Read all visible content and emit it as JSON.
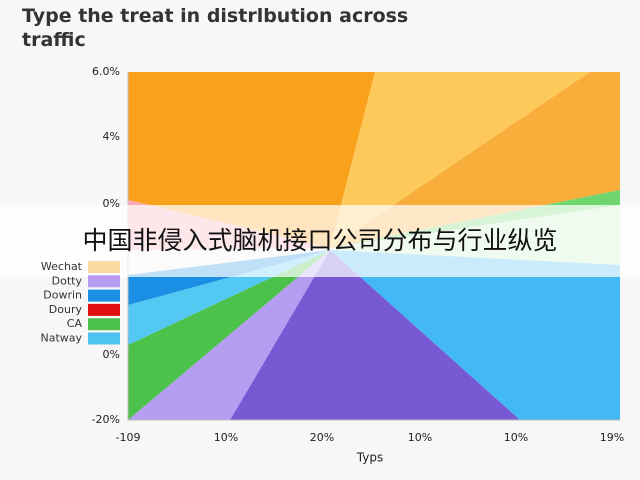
{
  "title": "Type the treat in distrlbution across traffic",
  "y_axis": {
    "ticks": [
      "6.0%",
      "4%",
      "0%",
      "0%",
      "-20%"
    ]
  },
  "x_axis": {
    "ticks": [
      "-109",
      "10%",
      "20%",
      "10%",
      "10%",
      "19%"
    ],
    "label": "Typs"
  },
  "legend": [
    {
      "label": "Wechat",
      "color": "#fcd9a0"
    },
    {
      "label": "Dotty",
      "color": "#b79cf0"
    },
    {
      "label": "Dowrin",
      "color": "#1a8fe3"
    },
    {
      "label": "Doury",
      "color": "#e01010"
    },
    {
      "label": "CA",
      "color": "#4cc24c"
    },
    {
      "label": "Natway",
      "color": "#4ec3f2"
    }
  ],
  "banner": "中国非侵入式脑机接口公司分布与行业纵览"
}
